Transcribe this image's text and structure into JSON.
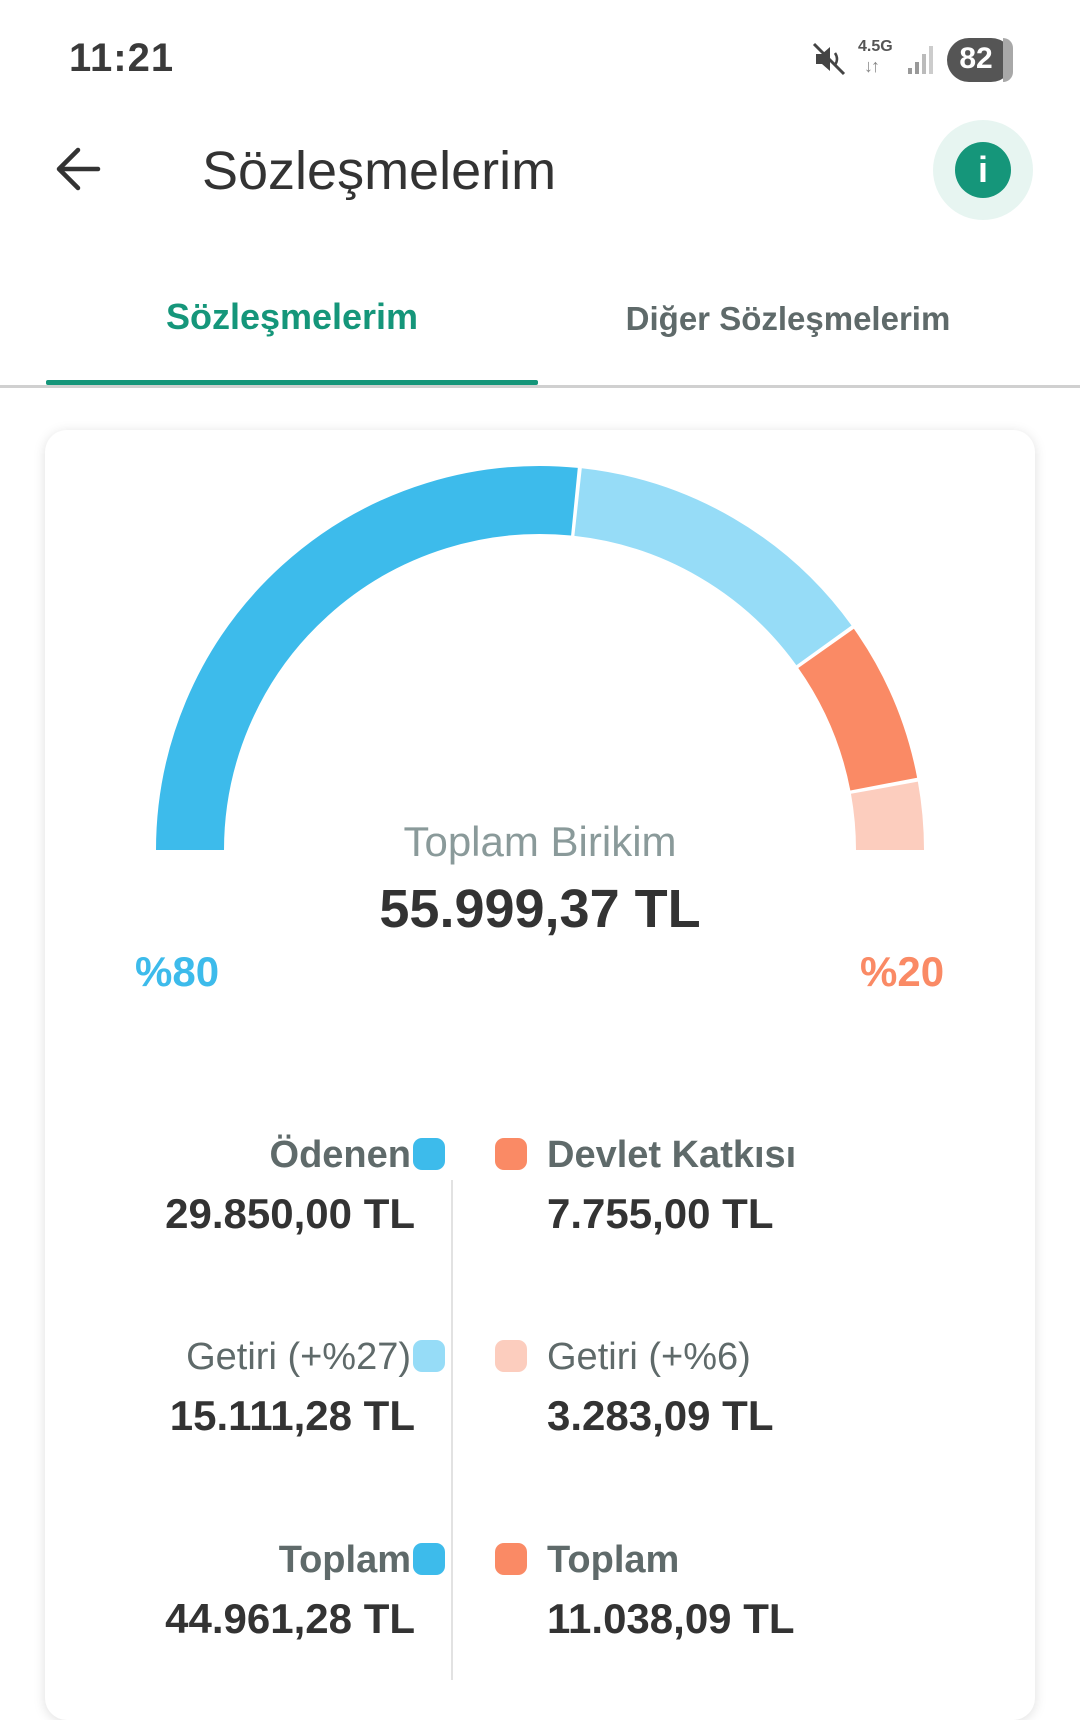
{
  "status_bar": {
    "time": "11:21",
    "network": "4.5G",
    "battery": "82",
    "icons": [
      "mute-icon",
      "network-icon",
      "signal-icon",
      "battery-icon"
    ]
  },
  "header": {
    "title": "Sözleşmelerim",
    "back_icon": "arrow-left-icon",
    "info_icon": "info-icon",
    "info_symbol": "i"
  },
  "tabs": [
    {
      "label": "Sözleşmelerim",
      "active": true
    },
    {
      "label": "Diğer Sözleşmelerim",
      "active": false
    }
  ],
  "summary": {
    "label": "Toplam Birikim",
    "total": "55.999,37 TL",
    "left_percent": "%80",
    "right_percent": "%20"
  },
  "colors": {
    "accent": "#15967a",
    "paid": "#3dbbeb",
    "paid_return": "#96dcf7",
    "state": "#fa8a65",
    "state_return": "#fccdbe"
  },
  "legend": {
    "left": [
      {
        "title": "Ödenen",
        "value": "29.850,00 TL"
      },
      {
        "title": "Getiri (+%27)",
        "value": "15.111,28 TL"
      },
      {
        "title": "Toplam",
        "value": "44.961,28 TL"
      }
    ],
    "right": [
      {
        "title": "Devlet Katkısı",
        "value": "7.755,00 TL"
      },
      {
        "title": "Getiri (+%6)",
        "value": "3.283,09 TL"
      },
      {
        "title": "Toplam",
        "value": "11.038,09 TL"
      }
    ]
  },
  "chart_data": {
    "type": "pie",
    "title": "Toplam Birikim",
    "total": 55999.37,
    "unit": "TL",
    "categories": [
      "Ödenen",
      "Getiri (+%27)",
      "Devlet Katkısı",
      "Getiri (+%6)"
    ],
    "values": [
      29850.0,
      15111.28,
      7755.0,
      3283.09
    ],
    "colors": [
      "#3dbbeb",
      "#96dcf7",
      "#fa8a65",
      "#fccdbe"
    ],
    "groups": [
      {
        "name": "Toplam",
        "share": "%80",
        "total": 44961.28
      },
      {
        "name": "Toplam",
        "share": "%20",
        "total": 11038.09
      }
    ]
  }
}
